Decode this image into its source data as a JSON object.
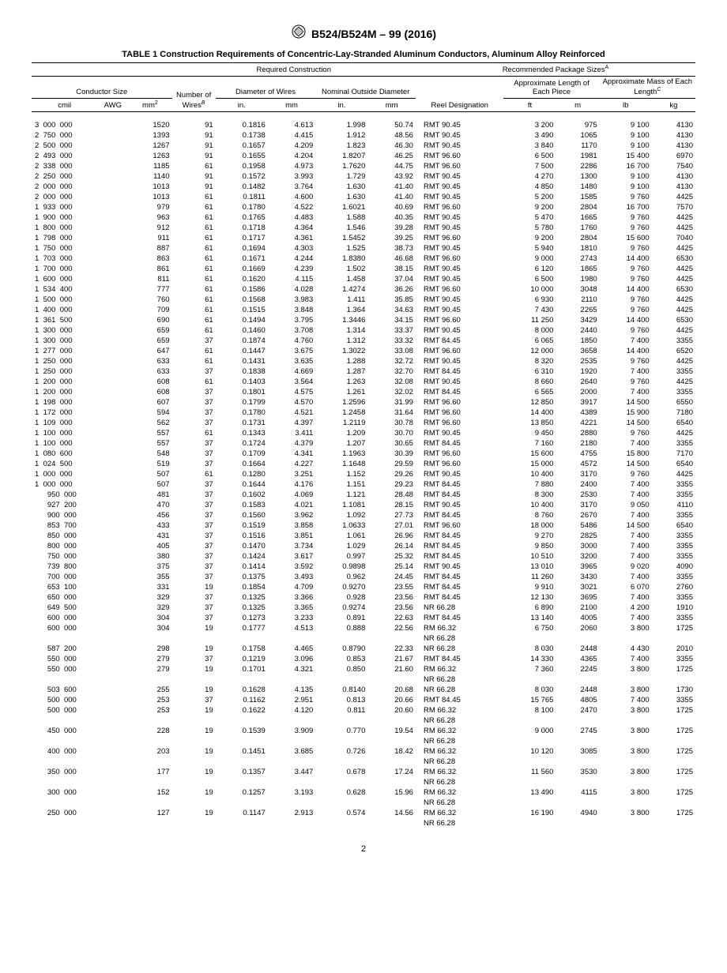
{
  "doc_code": "B524/B524M – 99 (2016)",
  "table_title": "TABLE 1 Construction Requirements of Concentric-Lay-Stranded Aluminum Conductors, Aluminum Alloy Reinforced",
  "group_headers": {
    "required": "Required Construction",
    "recommended": "Recommended Package Sizes",
    "recommended_sup": "A"
  },
  "col_headers": {
    "conductor_size": "Conductor Size",
    "num_wires": "Number of Wires",
    "num_wires_sup": "B",
    "diameter_wires": "Diameter of Wires",
    "nominal_od": "Nominal Outside Diameter",
    "reel": "Reel Designation",
    "approx_len": "Approximate Length of Each Piece",
    "approx_mass": "Approximate Mass of Each Length",
    "approx_mass_sup": "C"
  },
  "unit_headers": {
    "cmil": "cmil",
    "awg": "AWG",
    "mm2": "mm",
    "mm2_sup": "2",
    "in": "in.",
    "mm": "mm",
    "ft": "ft",
    "m": "m",
    "lb": "lb",
    "kg": "kg"
  },
  "rows": [
    [
      "3 000 000",
      "",
      "1520",
      "91",
      "0.1816",
      "4.613",
      "1.998",
      "50.74",
      "RMT 90.45",
      "3 200",
      "975",
      "9 100",
      "4130"
    ],
    [
      "2 750 000",
      "",
      "1393",
      "91",
      "0.1738",
      "4.415",
      "1.912",
      "48.56",
      "RMT 90.45",
      "3 490",
      "1065",
      "9 100",
      "4130"
    ],
    [
      "2 500 000",
      "",
      "1267",
      "91",
      "0.1657",
      "4.209",
      "1.823",
      "46.30",
      "RMT 90.45",
      "3 840",
      "1170",
      "9 100",
      "4130"
    ],
    [
      "2 493 000",
      "",
      "1263",
      "91",
      "0.1655",
      "4.204",
      "1.8207",
      "46.25",
      "RMT 96.60",
      "6 500",
      "1981",
      "15 400",
      "6970"
    ],
    [
      "2 338 000",
      "",
      "1185",
      "61",
      "0.1958",
      "4.973",
      "1.7620",
      "44.75",
      "RMT 96.60",
      "7 500",
      "2286",
      "16 700",
      "7540"
    ],
    [
      "2 250 000",
      "",
      "1140",
      "91",
      "0.1572",
      "3.993",
      "1.729",
      "43.92",
      "RMT 90.45",
      "4 270",
      "1300",
      "9 100",
      "4130"
    ],
    [
      "2 000 000",
      "",
      "1013",
      "91",
      "0.1482",
      "3.764",
      "1.630",
      "41.40",
      "RMT 90.45",
      "4 850",
      "1480",
      "9 100",
      "4130"
    ],
    [
      "2 000 000",
      "",
      "1013",
      "61",
      "0.1811",
      "4.600",
      "1.630",
      "41.40",
      "RMT 90.45",
      "5 200",
      "1585",
      "9 760",
      "4425"
    ],
    [
      "1 933 000",
      "",
      "979",
      "61",
      "0.1780",
      "4.522",
      "1.6021",
      "40.69",
      "RMT 96.60",
      "9 200",
      "2804",
      "16 700",
      "7570"
    ],
    [
      "1 900 000",
      "",
      "963",
      "61",
      "0.1765",
      "4.483",
      "1.588",
      "40.35",
      "RMT 90.45",
      "5 470",
      "1665",
      "9 760",
      "4425"
    ],
    [
      "1 800 000",
      "",
      "912",
      "61",
      "0.1718",
      "4.364",
      "1.546",
      "39.28",
      "RMT 90.45",
      "5 780",
      "1760",
      "9 760",
      "4425"
    ],
    [
      "1 798 000",
      "",
      "911",
      "61",
      "0.1717",
      "4.361",
      "1.5452",
      "39.25",
      "RMT 96.60",
      "9 200",
      "2804",
      "15 600",
      "7040"
    ],
    [
      "1 750 000",
      "",
      "887",
      "61",
      "0.1694",
      "4.303",
      "1.525",
      "38.73",
      "RMT 90.45",
      "5 940",
      "1810",
      "9 760",
      "4425"
    ],
    [
      "1 703 000",
      "",
      "863",
      "61",
      "0.1671",
      "4.244",
      "1.8380",
      "46.68",
      "RMT 96.60",
      "9 000",
      "2743",
      "14 400",
      "6530"
    ],
    [
      "1 700 000",
      "",
      "861",
      "61",
      "0.1669",
      "4.239",
      "1.502",
      "38.15",
      "RMT 90.45",
      "6 120",
      "1865",
      "9 760",
      "4425"
    ],
    [
      "1 600 000",
      "",
      "811",
      "61",
      "0.1620",
      "4.115",
      "1.458",
      "37.04",
      "RMT 90.45",
      "6 500",
      "1980",
      "9 760",
      "4425"
    ],
    [
      "1 534 400",
      "",
      "777",
      "61",
      "0.1586",
      "4.028",
      "1.4274",
      "36.26",
      "RMT 96.60",
      "10 000",
      "3048",
      "14 400",
      "6530"
    ],
    [
      "1 500 000",
      "",
      "760",
      "61",
      "0.1568",
      "3.983",
      "1.411",
      "35.85",
      "RMT 90.45",
      "6 930",
      "2110",
      "9 760",
      "4425"
    ],
    [
      "1 400 000",
      "",
      "709",
      "61",
      "0.1515",
      "3.848",
      "1.364",
      "34.63",
      "RMT 90.45",
      "7 430",
      "2265",
      "9 760",
      "4425"
    ],
    [
      "1 361 500",
      "",
      "690",
      "61",
      "0.1494",
      "3.795",
      "1.3446",
      "34.15",
      "RMT 96.60",
      "11 250",
      "3429",
      "14 400",
      "6530"
    ],
    [
      "1 300 000",
      "",
      "659",
      "61",
      "0.1460",
      "3.708",
      "1.314",
      "33.37",
      "RMT 90.45",
      "8 000",
      "2440",
      "9 760",
      "4425"
    ],
    [
      "1 300 000",
      "",
      "659",
      "37",
      "0.1874",
      "4.760",
      "1.312",
      "33.32",
      "RMT 84.45",
      "6 065",
      "1850",
      "7 400",
      "3355"
    ],
    [
      "1 277 000",
      "",
      "647",
      "61",
      "0.1447",
      "3.675",
      "1.3022",
      "33.08",
      "RMT 96.60",
      "12 000",
      "3658",
      "14 400",
      "6520"
    ],
    [
      "1 250 000",
      "",
      "633",
      "61",
      "0.1431",
      "3.635",
      "1.288",
      "32.72",
      "RMT 90.45",
      "8 320",
      "2535",
      "9 760",
      "4425"
    ],
    [
      "1 250 000",
      "",
      "633",
      "37",
      "0.1838",
      "4.669",
      "1.287",
      "32.70",
      "RMT 84.45",
      "6 310",
      "1920",
      "7 400",
      "3355"
    ],
    [
      "1 200 000",
      "",
      "608",
      "61",
      "0.1403",
      "3.564",
      "1.263",
      "32.08",
      "RMT 90.45",
      "8 660",
      "2640",
      "9 760",
      "4425"
    ],
    [
      "1 200 000",
      "",
      "608",
      "37",
      "0.1801",
      "4.575",
      "1.261",
      "32.02",
      "RMT 84.45",
      "6 565",
      "2000",
      "7 400",
      "3355"
    ],
    [
      "1 198 000",
      "",
      "607",
      "37",
      "0.1799",
      "4.570",
      "1.2596",
      "31.99",
      "RMT 96.60",
      "12 850",
      "3917",
      "14 500",
      "6550"
    ],
    [
      "1 172 000",
      "",
      "594",
      "37",
      "0.1780",
      "4.521",
      "1.2458",
      "31.64",
      "RMT 96.60",
      "14 400",
      "4389",
      "15 900",
      "7180"
    ],
    [
      "1 109 000",
      "",
      "562",
      "37",
      "0.1731",
      "4.397",
      "1.2119",
      "30.78",
      "RMT 96.60",
      "13 850",
      "4221",
      "14 500",
      "6540"
    ],
    [
      "1 100 000",
      "",
      "557",
      "61",
      "0.1343",
      "3.411",
      "1.209",
      "30.70",
      "RMT 90.45",
      "9 450",
      "2880",
      "9 760",
      "4425"
    ],
    [
      "1 100 000",
      "",
      "557",
      "37",
      "0.1724",
      "4.379",
      "1.207",
      "30.65",
      "RMT 84.45",
      "7 160",
      "2180",
      "7 400",
      "3355"
    ],
    [
      "1 080 600",
      "",
      "548",
      "37",
      "0.1709",
      "4.341",
      "1.1963",
      "30.39",
      "RMT 96.60",
      "15 600",
      "4755",
      "15 800",
      "7170"
    ],
    [
      "1 024 500",
      "",
      "519",
      "37",
      "0.1664",
      "4.227",
      "1.1648",
      "29.59",
      "RMT 96.60",
      "15 000",
      "4572",
      "14 500",
      "6540"
    ],
    [
      "1 000 000",
      "",
      "507",
      "61",
      "0.1280",
      "3.251",
      "1.152",
      "29.26",
      "RMT 90.45",
      "10 400",
      "3170",
      "9 760",
      "4425"
    ],
    [
      "1 000 000",
      "",
      "507",
      "37",
      "0.1644",
      "4.176",
      "1.151",
      "29.23",
      "RMT 84.45",
      "7 880",
      "2400",
      "7 400",
      "3355"
    ],
    [
      "   950 000",
      "",
      "481",
      "37",
      "0.1602",
      "4.069",
      "1.121",
      "28.48",
      "RMT 84.45",
      "8 300",
      "2530",
      "7 400",
      "3355"
    ],
    [
      "   927 200",
      "",
      "470",
      "37",
      "0.1583",
      "4.021",
      "1.1081",
      "28.15",
      "RMT 90.45",
      "10 400",
      "3170",
      "9 050",
      "4110"
    ],
    [
      "   900 000",
      "",
      "456",
      "37",
      "0.1560",
      "3.962",
      "1.092",
      "27.73",
      "RMT 84.45",
      "8 760",
      "2670",
      "7 400",
      "3355"
    ],
    [
      "   853 700",
      "",
      "433",
      "37",
      "0.1519",
      "3.858",
      "1.0633",
      "27.01",
      "RMT 96.60",
      "18 000",
      "5486",
      "14 500",
      "6540"
    ],
    [
      "   850 000",
      "",
      "431",
      "37",
      "0.1516",
      "3.851",
      "1.061",
      "26.96",
      "RMT 84.45",
      "9 270",
      "2825",
      "7 400",
      "3355"
    ],
    [
      "   800 000",
      "",
      "405",
      "37",
      "0.1470",
      "3.734",
      "1.029",
      "26.14",
      "RMT 84.45",
      "9 850",
      "3000",
      "7 400",
      "3355"
    ],
    [
      "   750 000",
      "",
      "380",
      "37",
      "0.1424",
      "3.617",
      "0.997",
      "25.32",
      "RMT 84.45",
      "10 510",
      "3200",
      "7 400",
      "3355"
    ],
    [
      "   739 800",
      "",
      "375",
      "37",
      "0.1414",
      "3.592",
      "0.9898",
      "25.14",
      "RMT 90.45",
      "13 010",
      "3965",
      "9 020",
      "4090"
    ],
    [
      "   700 000",
      "",
      "355",
      "37",
      "0.1375",
      "3.493",
      "0.962",
      "24.45",
      "RMT 84.45",
      "11 260",
      "3430",
      "7 400",
      "3355"
    ],
    [
      "   653 100",
      "",
      "331",
      "19",
      "0.1854",
      "4.709",
      "0.9270",
      "23.55",
      "RMT 84.45",
      "9 910",
      "3021",
      "6 070",
      "2760"
    ],
    [
      "   650 000",
      "",
      "329",
      "37",
      "0.1325",
      "3.366",
      "0.928",
      "23.56",
      "RMT 84.45",
      "12 130",
      "3695",
      "7 400",
      "3355"
    ],
    [
      "   649 500",
      "",
      "329",
      "37",
      "0.1325",
      "3.365",
      "0.9274",
      "23.56",
      "NR 66.28",
      "6 890",
      "2100",
      "4 200",
      "1910"
    ],
    [
      "   600 000",
      "",
      "304",
      "37",
      "0.1273",
      "3.233",
      "0.891",
      "22.63",
      "RMT 84.45",
      "13 140",
      "4005",
      "7 400",
      "3355"
    ],
    [
      "   600 000",
      "",
      "304",
      "19",
      "0.1777",
      "4.513",
      "0.888",
      "22.56",
      "RM 66.32\nNR 66.28",
      "6 750",
      "2060",
      "3 800",
      "1725"
    ],
    [
      "   587 200",
      "",
      "298",
      "19",
      "0.1758",
      "4.465",
      "0.8790",
      "22.33",
      "NR 66.28",
      "8 030",
      "2448",
      "4 430",
      "2010"
    ],
    [
      "   550 000",
      "",
      "279",
      "37",
      "0.1219",
      "3.096",
      "0.853",
      "21.67",
      "RMT 84.45",
      "14 330",
      "4365",
      "7 400",
      "3355"
    ],
    [
      "   550 000",
      "",
      "279",
      "19",
      "0.1701",
      "4.321",
      "0.850",
      "21.60",
      "RM 66.32\nNR 66.28",
      "7 360",
      "2245",
      "3 800",
      "1725"
    ],
    [
      "   503 600",
      "",
      "255",
      "19",
      "0.1628",
      "4.135",
      "0.8140",
      "20.68",
      "NR 66.28",
      "8 030",
      "2448",
      "3 800",
      "1730"
    ],
    [
      "   500 000",
      "",
      "253",
      "37",
      "0.1162",
      "2.951",
      "0.813",
      "20.66",
      "RMT 84.45",
      "15 765",
      "4805",
      "7 400",
      "3355"
    ],
    [
      "   500 000",
      "",
      "253",
      "19",
      "0.1622",
      "4.120",
      "0.811",
      "20.60",
      "RM 66.32\nNR 66.28",
      "8 100",
      "2470",
      "3 800",
      "1725"
    ],
    [
      "   450 000",
      "",
      "228",
      "19",
      "0.1539",
      "3.909",
      "0.770",
      "19.54",
      "RM 66.32\nNR 66.28",
      "9 000",
      "2745",
      "3 800",
      "1725"
    ],
    [
      "   400 000",
      "",
      "203",
      "19",
      "0.1451",
      "3.685",
      "0.726",
      "18.42",
      "RM 66.32\nNR 66.28",
      "10 120",
      "3085",
      "3 800",
      "1725"
    ],
    [
      "   350 000",
      "",
      "177",
      "19",
      "0.1357",
      "3.447",
      "0.678",
      "17.24",
      "RM 66.32\nNR 66.28",
      "11 560",
      "3530",
      "3 800",
      "1725"
    ],
    [
      "   300 000",
      "",
      "152",
      "19",
      "0.1257",
      "3.193",
      "0.628",
      "15.96",
      "RM 66.32\nNR 66.28",
      "13 490",
      "4115",
      "3 800",
      "1725"
    ],
    [
      "   250 000",
      "",
      "127",
      "19",
      "0.1147",
      "2.913",
      "0.574",
      "14.56",
      "RM 66.32\nNR 66.28",
      "16 190",
      "4940",
      "3 800",
      "1725"
    ]
  ],
  "page_number": "2"
}
